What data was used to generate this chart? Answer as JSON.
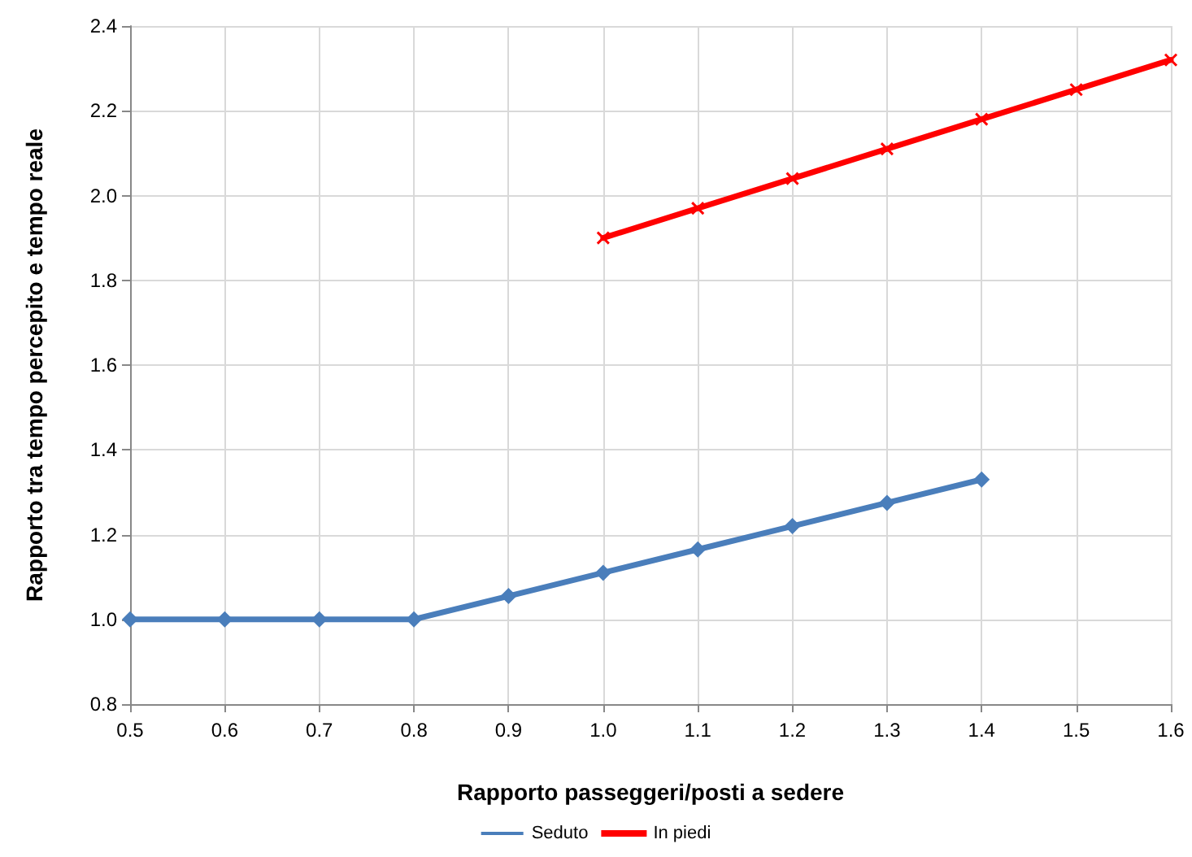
{
  "chart_data": {
    "type": "line",
    "xlabel": "Rapporto passeggeri/posti a sedere",
    "ylabel": "Rapporto tra tempo percepito e tempo reale",
    "xlim": [
      0.5,
      1.6
    ],
    "xticks": [
      {
        "value": 0.5,
        "label": "0.5"
      },
      {
        "value": 0.6,
        "label": "0.6"
      },
      {
        "value": 0.7,
        "label": "0.7"
      },
      {
        "value": 0.8,
        "label": "0.8"
      },
      {
        "value": 0.9,
        "label": "0.9"
      },
      {
        "value": 1.0,
        "label": "1.0"
      },
      {
        "value": 1.1,
        "label": "1.1"
      },
      {
        "value": 1.2,
        "label": "1.2"
      },
      {
        "value": 1.3,
        "label": "1.3"
      },
      {
        "value": 1.4,
        "label": "1.4"
      },
      {
        "value": 1.5,
        "label": "1.5"
      },
      {
        "value": 1.6,
        "label": "1.6"
      }
    ],
    "ylim": [
      0.8,
      2.4
    ],
    "yticks": [
      {
        "value": 0.8,
        "label": "0.8"
      },
      {
        "value": 1.0,
        "label": "1.0"
      },
      {
        "value": 1.2,
        "label": "1.2"
      },
      {
        "value": 1.4,
        "label": "1.4"
      },
      {
        "value": 1.6,
        "label": "1.6"
      },
      {
        "value": 1.8,
        "label": "1.8"
      },
      {
        "value": 2.0,
        "label": "2.0"
      },
      {
        "value": 2.2,
        "label": "2.2"
      },
      {
        "value": 2.4,
        "label": "2.4"
      }
    ],
    "grid": true,
    "legend": "bottom",
    "line_style": "solid",
    "series": [
      {
        "name": "Seduto",
        "color": "#4a7ebb",
        "marker": "diamond",
        "x": [
          0.5,
          0.6,
          0.7,
          0.8,
          0.9,
          1.0,
          1.1,
          1.2,
          1.3,
          1.4
        ],
        "values": [
          1.0,
          1.0,
          1.0,
          1.0,
          1.055,
          1.11,
          1.165,
          1.22,
          1.275,
          1.33
        ]
      },
      {
        "name": "In piedi",
        "color": "#ff0000",
        "marker": "cross",
        "x": [
          1.0,
          1.1,
          1.2,
          1.3,
          1.4,
          1.5,
          1.6
        ],
        "values": [
          1.9,
          1.97,
          2.04,
          2.11,
          2.18,
          2.25,
          2.32
        ]
      }
    ]
  }
}
